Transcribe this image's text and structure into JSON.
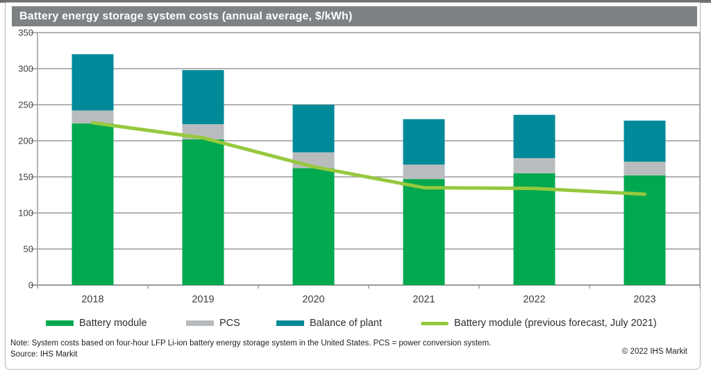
{
  "title": "Battery energy storage system costs (annual average, $/kWh)",
  "footer": {
    "note": "Note: System costs based on four-hour LFP Li-ion battery energy storage system in the United States. PCS = power conversion system.",
    "source": "Source: IHS Markit",
    "copyright": "© 2022 IHS Markit"
  },
  "colors": {
    "battery_module": "#00a84f",
    "pcs": "#b9bcbe",
    "balance_of_plant": "#008a99",
    "forecast_line": "#96c83e",
    "banner": "#7e8285",
    "grid": "#999999",
    "axis_text": "#3d3d3d"
  },
  "legend": [
    {
      "label": "Battery module",
      "type": "bar",
      "color_key": "battery_module"
    },
    {
      "label": "PCS",
      "type": "bar",
      "color_key": "pcs"
    },
    {
      "label": "Balance of plant",
      "type": "bar",
      "color_key": "balance_of_plant"
    },
    {
      "label": "Battery module (previous forecast, July 2021)",
      "type": "line",
      "color_key": "forecast_line"
    }
  ],
  "chart_data": {
    "type": "bar",
    "subtype": "stacked-bar-with-line",
    "title": "Battery energy storage system costs (annual average, $/kWh)",
    "categories": [
      "2018",
      "2019",
      "2020",
      "2021",
      "2022",
      "2023"
    ],
    "series": [
      {
        "name": "Battery module",
        "type": "bar",
        "color_key": "battery_module",
        "values": [
          224,
          202,
          162,
          147,
          155,
          152
        ]
      },
      {
        "name": "PCS",
        "type": "bar",
        "color_key": "pcs",
        "values": [
          18,
          21,
          22,
          20,
          21,
          19
        ]
      },
      {
        "name": "Balance of plant",
        "type": "bar",
        "color_key": "balance_of_plant",
        "values": [
          78,
          75,
          66,
          63,
          60,
          57
        ]
      },
      {
        "name": "Battery module (previous forecast, July 2021)",
        "type": "line",
        "color_key": "forecast_line",
        "values": [
          225,
          204,
          164,
          135,
          134,
          126
        ]
      }
    ],
    "stack_totals": [
      320,
      298,
      250,
      230,
      236,
      228
    ],
    "xlabel": "",
    "ylabel": "",
    "ylim": [
      0,
      350
    ],
    "yticks": [
      0,
      50,
      100,
      150,
      200,
      250,
      300,
      350
    ],
    "grid": true,
    "legend_position": "bottom"
  }
}
